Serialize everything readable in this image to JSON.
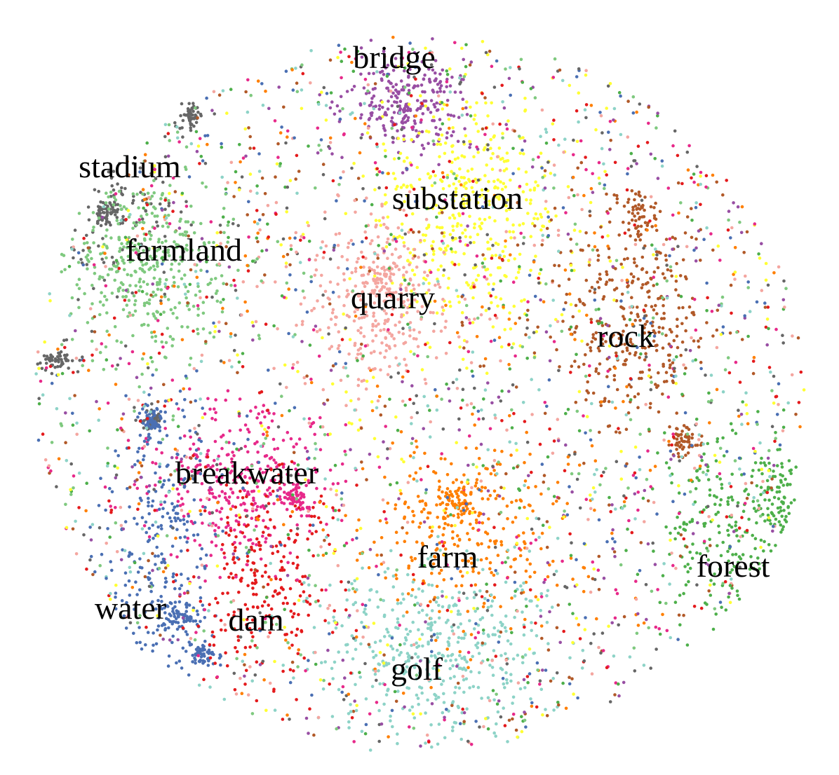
{
  "chart_data": {
    "type": "scatter",
    "title": "",
    "xlabel": "",
    "ylabel": "",
    "axes_visible": false,
    "grid": false,
    "legend": "none",
    "cluster_labels": [
      {
        "label": "bridge",
        "color": "#984ea3"
      },
      {
        "label": "stadium",
        "color": "#666666"
      },
      {
        "label": "substation",
        "color": "#ffff33"
      },
      {
        "label": "farmland",
        "color": "#7fc97f"
      },
      {
        "label": "quarry",
        "color": "#f4a6a0"
      },
      {
        "label": "rock",
        "color": "#b15928"
      },
      {
        "label": "breakwater",
        "color": "#e7298a"
      },
      {
        "label": "farm",
        "color": "#ff7f00"
      },
      {
        "label": "forest",
        "color": "#4daf4a"
      },
      {
        "label": "water",
        "color": "#4a6fb3"
      },
      {
        "label": "dam",
        "color": "#e41a1c"
      },
      {
        "label": "golf",
        "color": "#8dd3c7"
      }
    ]
  }
}
